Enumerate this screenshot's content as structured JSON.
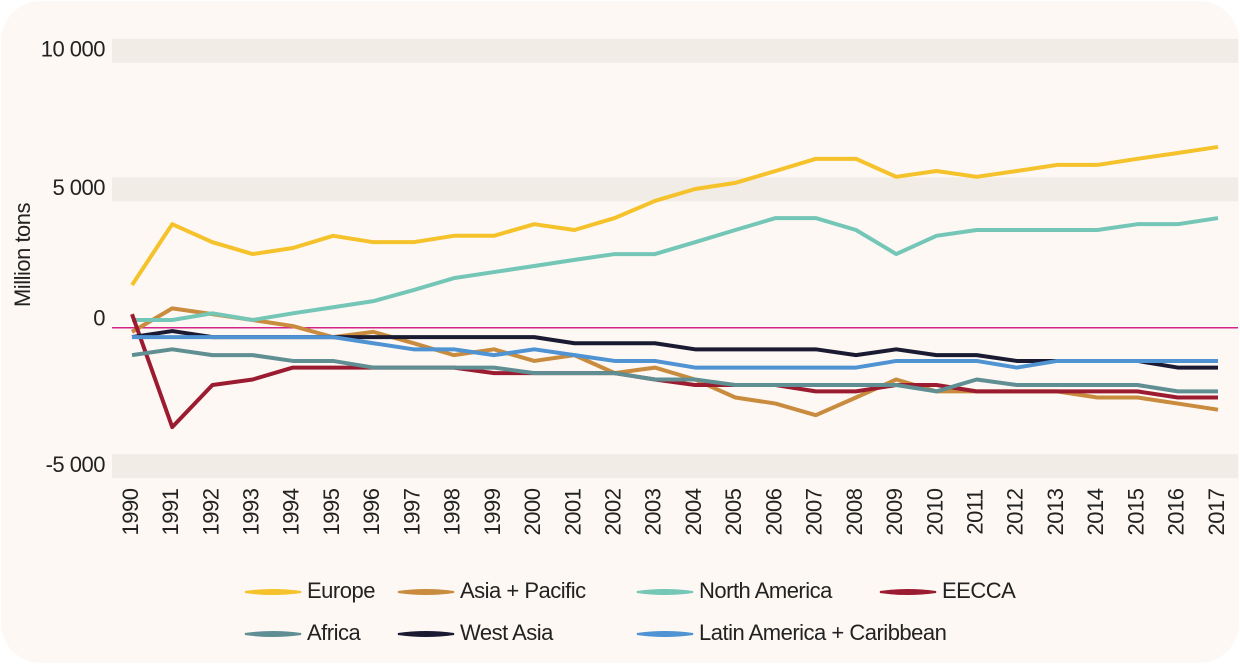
{
  "chart_data": {
    "type": "line",
    "ylabel": "Million tons",
    "categories": [
      "1990",
      "1991",
      "1992",
      "1993",
      "1994",
      "1995",
      "1996",
      "1997",
      "1998",
      "1999",
      "2000",
      "2001",
      "2002",
      "2003",
      "2004",
      "2005",
      "2006",
      "2007",
      "2008",
      "2009",
      "2010",
      "2011",
      "2012",
      "2013",
      "2014",
      "2015",
      "2016",
      "2017"
    ],
    "ylim": [
      -5500,
      10500
    ],
    "yticks": [
      {
        "value": -5000,
        "label": "-5 000"
      },
      0,
      {
        "value": 5000,
        "label": "5 000"
      },
      {
        "value": 10000,
        "label": "10 000"
      }
    ],
    "grid": true,
    "zero_line_color": "#d4248a",
    "legend": "bottom",
    "series": [
      {
        "name": "Europe",
        "color": "#f5c22b",
        "values": [
          1540,
          3740,
          3090,
          2660,
          2880,
          3320,
          3090,
          3090,
          3320,
          3320,
          3740,
          3530,
          3960,
          4580,
          5010,
          5230,
          5660,
          6100,
          6100,
          5450,
          5660,
          5450,
          5660,
          5880,
          5880,
          6100,
          6310,
          6530
        ]
      },
      {
        "name": "Asia + Pacific",
        "color": "#c98b3e",
        "values": [
          -150,
          700,
          490,
          280,
          60,
          -340,
          -150,
          -560,
          -990,
          -780,
          -1200,
          -990,
          -1640,
          -1440,
          -1870,
          -2520,
          -2740,
          -3160,
          -2520,
          -1870,
          -2300,
          -2300,
          -2300,
          -2300,
          -2520,
          -2520,
          -2740,
          -2960
        ]
      },
      {
        "name": "North America",
        "color": "#74c6b7",
        "values": [
          280,
          280,
          520,
          280,
          520,
          740,
          960,
          1360,
          1790,
          2010,
          2230,
          2450,
          2660,
          2660,
          3090,
          3530,
          3960,
          3960,
          3530,
          2660,
          3320,
          3530,
          3530,
          3530,
          3530,
          3740,
          3740,
          3960
        ]
      },
      {
        "name": "EECCA",
        "color": "#9b1c30",
        "values": [
          490,
          -3590,
          -2070,
          -1870,
          -1440,
          -1440,
          -1440,
          -1440,
          -1440,
          -1640,
          -1640,
          -1640,
          -1640,
          -1870,
          -2070,
          -2070,
          -2070,
          -2300,
          -2300,
          -2070,
          -2070,
          -2300,
          -2300,
          -2300,
          -2300,
          -2300,
          -2520,
          -2520
        ]
      },
      {
        "name": "Africa",
        "color": "#5f8e93",
        "values": [
          -990,
          -780,
          -990,
          -990,
          -1200,
          -1200,
          -1440,
          -1440,
          -1440,
          -1440,
          -1640,
          -1640,
          -1640,
          -1870,
          -1870,
          -2070,
          -2070,
          -2070,
          -2070,
          -2070,
          -2300,
          -1870,
          -2070,
          -2070,
          -2070,
          -2070,
          -2300,
          -2300
        ]
      },
      {
        "name": "West Asia",
        "color": "#1a1a33",
        "values": [
          -340,
          -120,
          -340,
          -340,
          -340,
          -340,
          -340,
          -340,
          -340,
          -340,
          -340,
          -560,
          -560,
          -560,
          -780,
          -780,
          -780,
          -780,
          -990,
          -780,
          -990,
          -990,
          -1200,
          -1200,
          -1200,
          -1200,
          -1440,
          -1440
        ]
      },
      {
        "name": "Latin America + Caribbean",
        "color": "#4f93d3",
        "values": [
          -340,
          -340,
          -340,
          -340,
          -340,
          -340,
          -560,
          -780,
          -780,
          -990,
          -780,
          -990,
          -1200,
          -1200,
          -1440,
          -1440,
          -1440,
          -1440,
          -1440,
          -1200,
          -1200,
          -1200,
          -1440,
          -1200,
          -1200,
          -1200,
          -1200,
          -1200
        ]
      }
    ]
  }
}
